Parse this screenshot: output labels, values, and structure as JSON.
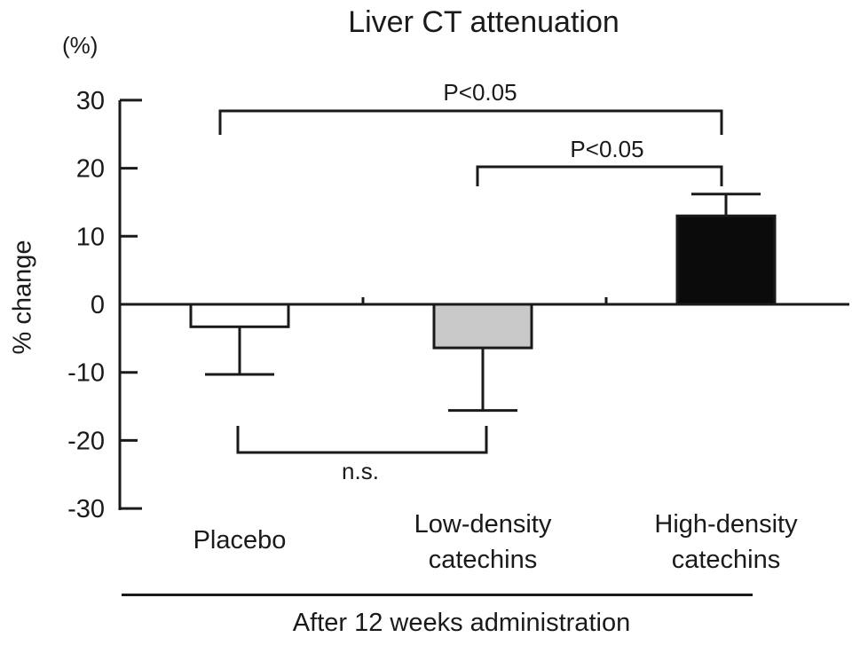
{
  "title": "Liver CT attenuation",
  "chart_data": {
    "type": "bar",
    "title": "Liver CT attenuation",
    "unit_label": "(%)",
    "ylabel": "% change",
    "xlabel": "After 12 weeks administration",
    "ylim": [
      -30,
      30
    ],
    "yticks": [
      30,
      20,
      10,
      0,
      -10,
      -20,
      -30
    ],
    "categories": [
      "Placebo",
      "Low-density catechins",
      "High-density catechins"
    ],
    "category_lines": [
      [
        "Placebo"
      ],
      [
        "Low-density",
        "catechins"
      ],
      [
        "High-density",
        "catechins"
      ]
    ],
    "series": [
      {
        "name": "% change",
        "values": [
          -3.3,
          -6.4,
          13.0
        ],
        "errors": [
          7.0,
          9.2,
          3.2
        ]
      }
    ],
    "bar_colors": [
      "#ffffff",
      "#c9c9c9",
      "#0b0b0b"
    ],
    "bar_border_color": "#1a1a1a",
    "axis_color": "#1a1a1a",
    "annotations": [
      {
        "type": "bracket",
        "label": "P<0.05",
        "from": "Placebo",
        "to": "High-density catechins",
        "side": "top"
      },
      {
        "type": "bracket",
        "label": "P<0.05",
        "from": "Low-density catechins",
        "to": "High-density catechins",
        "side": "top"
      },
      {
        "type": "bracket",
        "label": "n.s.",
        "from": "Placebo",
        "to": "Low-density catechins",
        "side": "bottom"
      }
    ],
    "grid": false,
    "legend": false
  }
}
